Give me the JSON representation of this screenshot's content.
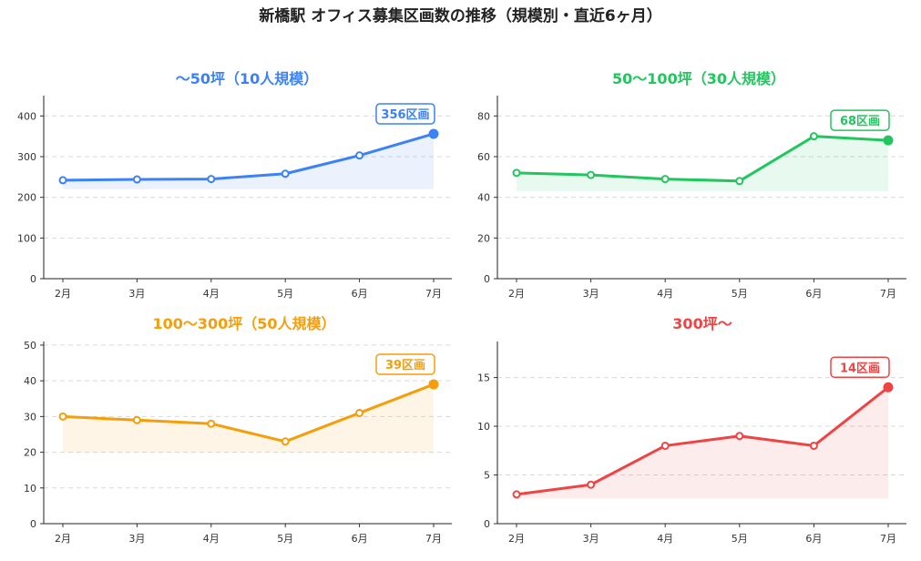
{
  "title": "新橋駅 オフィス募集区画数の推移（規模別・直近6ヶ月）",
  "chart_data": [
    {
      "type": "line",
      "title": "〜50坪（10人規模）",
      "color": "#3b82f6",
      "categories": [
        "2月",
        "3月",
        "4月",
        "5月",
        "6月",
        "7月"
      ],
      "values": [
        242,
        244,
        245,
        258,
        303,
        356
      ],
      "ylim": [
        0,
        450
      ],
      "yticks": [
        0,
        100,
        200,
        300,
        400
      ],
      "fill_base": 220,
      "annotation": "356区画"
    },
    {
      "type": "line",
      "title": "50〜100坪（30人規模）",
      "color": "#22c55e",
      "categories": [
        "2月",
        "3月",
        "4月",
        "5月",
        "6月",
        "7月"
      ],
      "values": [
        52,
        51,
        49,
        48,
        70,
        68
      ],
      "ylim": [
        0,
        90
      ],
      "yticks": [
        0,
        20,
        40,
        60,
        80
      ],
      "fill_base": 43,
      "annotation": "68区画"
    },
    {
      "type": "line",
      "title": "100〜300坪（50人規模）",
      "color": "#f59e0b",
      "categories": [
        "2月",
        "3月",
        "4月",
        "5月",
        "6月",
        "7月"
      ],
      "values": [
        30,
        29,
        28,
        23,
        31,
        39
      ],
      "ylim": [
        0,
        51
      ],
      "yticks": [
        0,
        10,
        20,
        30,
        40,
        50
      ],
      "fill_base": 20,
      "annotation": "39区画"
    },
    {
      "type": "line",
      "title": "300坪〜",
      "color": "#ef4444",
      "categories": [
        "2月",
        "3月",
        "4月",
        "5月",
        "6月",
        "7月"
      ],
      "values": [
        3,
        4,
        8,
        9,
        8,
        14
      ],
      "ylim": [
        0,
        18.7
      ],
      "yticks": [
        0,
        5,
        10,
        15
      ],
      "fill_base": 2.6,
      "annotation": "14区画"
    }
  ]
}
